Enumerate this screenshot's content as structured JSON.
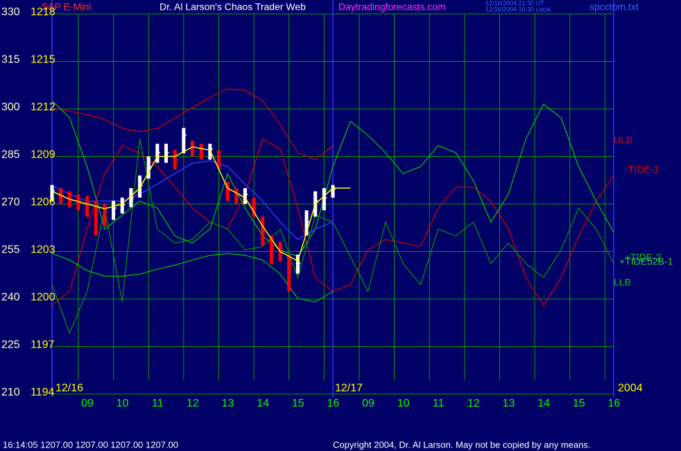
{
  "chart_data": {
    "type": "line",
    "title": "Dr. Al Larson's Chaos Trader Web",
    "instrument": "S&P E-Mini",
    "site": "Daytradingforecasts.com",
    "timestamps": [
      "12/16/2004 21:30 UT",
      "12/16/2004 16:30 Local"
    ],
    "file": "spcctom.txt",
    "status": "16:14:05  1207.00 1207.00 1207.00 1207.00",
    "copyright": "Copyright 2004, Dr. Al Larson. May not be copied by any means.",
    "date_labels": [
      "12/16",
      "12/17",
      "2004"
    ],
    "day_breaks": [
      0,
      8,
      16
    ],
    "grid": true,
    "xlim": [
      0,
      16
    ],
    "xticks": [
      {
        "value": 0.75,
        "label": "09"
      },
      {
        "value": 1.75,
        "label": "10"
      },
      {
        "value": 2.75,
        "label": "11"
      },
      {
        "value": 3.75,
        "label": "12"
      },
      {
        "value": 4.75,
        "label": "13"
      },
      {
        "value": 5.75,
        "label": "14"
      },
      {
        "value": 6.75,
        "label": "15"
      },
      {
        "value": 7.75,
        "label": "16"
      },
      {
        "value": 8.75,
        "label": "09"
      },
      {
        "value": 9.75,
        "label": "10"
      },
      {
        "value": 10.75,
        "label": "11"
      },
      {
        "value": 11.75,
        "label": "12"
      },
      {
        "value": 12.75,
        "label": "13"
      },
      {
        "value": 13.75,
        "label": "14"
      },
      {
        "value": 14.75,
        "label": "15"
      },
      {
        "value": 15.75,
        "label": "16"
      }
    ],
    "ylim": [
      210,
      330
    ],
    "yticks": [
      210,
      225,
      240,
      255,
      270,
      285,
      300,
      315,
      330
    ],
    "y2lim": [
      1194,
      1218
    ],
    "y2ticks": [
      1194,
      1197,
      1200,
      1203,
      1206,
      1209,
      1212,
      1215,
      1218
    ],
    "x": [
      0,
      0.5,
      1,
      1.5,
      2,
      2.5,
      3,
      3.5,
      4,
      4.5,
      5,
      5.5,
      6,
      6.5,
      7,
      7.5,
      8,
      8.5,
      9,
      9.5,
      10,
      10.5,
      11,
      11.5,
      12,
      12.5,
      13,
      13.5,
      14,
      14.5,
      15,
      15.5,
      16
    ],
    "series": [
      {
        "name": "ULB",
        "color": "#dd0000",
        "values": [
          300.4,
          299.3,
          298.2,
          296.7,
          293.9,
          292.8,
          293.9,
          297.2,
          300.4,
          303.7,
          306.3,
          305.9,
          302.6,
          295,
          286.2,
          284,
          288.4,
          null,
          null,
          null,
          null,
          null,
          null,
          null,
          null,
          null,
          null,
          null,
          null,
          null,
          null,
          null,
          null
        ]
      },
      {
        "name": "-TIDE-1",
        "color": "#dd0000",
        "values": [
          238,
          242.4,
          262.1,
          279.6,
          288.4,
          286.2,
          281.8,
          275.3,
          268.7,
          264.3,
          262.1,
          273.1,
          290.6,
          287.3,
          268.7,
          246.8,
          242.4,
          244.6,
          255.5,
          258.8,
          257.7,
          256.6,
          268.7,
          275.3,
          275.3,
          270.9,
          262.1,
          246.8,
          238,
          246.8,
          259.9,
          270.9,
          279.2
        ]
      },
      {
        "name": "+TIDE-2",
        "color": "#00cc00",
        "values": [
          302.6,
          297.2,
          281.8,
          262.1,
          266.5,
          270.9,
          268.7,
          259.9,
          257.7,
          262.1,
          279.6,
          268.7,
          259.9,
          255.5,
          253.4,
          262.1,
          281.8,
          296.1,
          291.7,
          286.2,
          279.6,
          281.8,
          288.4,
          286.2,
          277.4,
          264.3,
          273.1,
          290.6,
          301.5,
          297.2,
          281.8,
          270.9,
          261
        ]
      },
      {
        "name": "+TIDE52B-1",
        "color": "#009900",
        "values": [
          244.6,
          229.3,
          242.4,
          268.7,
          239.1,
          290.6,
          262.1,
          257.7,
          258.8,
          264.3,
          262.1,
          255.5,
          256.6,
          262.1,
          246.8,
          266.5,
          264.3,
          253.4,
          242.4,
          264.3,
          251.2,
          244.6,
          262.1,
          259.9,
          264.3,
          251.2,
          257.7,
          251.2,
          246.8,
          255.5,
          268.7,
          262.1,
          251.2
        ]
      },
      {
        "name": "LLB",
        "color": "#00cc00",
        "values": [
          254.4,
          252.3,
          249,
          247.2,
          247.2,
          247.9,
          249.4,
          250.7,
          252.3,
          253.8,
          254.4,
          253.8,
          252.3,
          247.9,
          240.2,
          239.1,
          242.4,
          null,
          null,
          null,
          null,
          null,
          null,
          null,
          null,
          null,
          null,
          null,
          null,
          null,
          null,
          null,
          null
        ]
      },
      {
        "color": "#3333ff",
        "values": [
          275.7,
          273.1,
          270.9,
          270.9,
          270.9,
          273.1,
          276.3,
          279.6,
          282.9,
          283.6,
          281.8,
          276.3,
          270.9,
          264.3,
          258.8,
          262.1,
          264.3,
          null,
          null,
          null,
          null,
          null,
          null,
          null,
          null,
          null,
          null,
          null,
          null,
          null,
          null,
          null,
          null
        ]
      },
      {
        "color": "#ffff00",
        "values": [
          274,
          271.5,
          270,
          268.5,
          270,
          275,
          285,
          285,
          288,
          287,
          275,
          272,
          263,
          255,
          252,
          270,
          275,
          275,
          null,
          null,
          null,
          null,
          null,
          null,
          null,
          null,
          null,
          null,
          null,
          null,
          null,
          null,
          null
        ]
      }
    ],
    "price_bars": {
      "up_color": "#ffffff",
      "down_color": "#ff0000",
      "x": [
        0,
        0.25,
        0.5,
        0.75,
        1,
        1.25,
        1.5,
        1.75,
        2,
        2.25,
        2.5,
        2.75,
        3,
        3.25,
        3.5,
        3.75,
        4,
        4.25,
        4.5,
        4.75,
        5,
        5.25,
        5.5,
        5.75,
        6,
        6.25,
        6.5,
        6.75,
        7,
        7.25,
        7.5,
        7.75,
        8
      ],
      "high": [
        276,
        275,
        274,
        273,
        272.5,
        271,
        270,
        271,
        272,
        275,
        279,
        285,
        289,
        289,
        287,
        294,
        290,
        289,
        289,
        287,
        277,
        275,
        275,
        272,
        266,
        260,
        258,
        254,
        254,
        268,
        274,
        275,
        276
      ],
      "low": [
        271,
        270,
        269,
        268,
        266,
        260,
        263,
        265,
        267,
        269,
        272,
        278,
        283,
        283,
        281,
        286,
        285,
        284,
        284,
        281,
        271,
        270,
        270,
        266,
        257,
        251,
        252,
        242.4,
        248,
        260,
        266,
        268,
        272
      ],
      "close": [
        274.2,
        272.8,
        271.5,
        270.9,
        270.2,
        268.7,
        267.6,
        268.7,
        269.8,
        272,
        275.7,
        281.8,
        286.2,
        286.2,
        284,
        291.7,
        288.4,
        287.3,
        287.3,
        285.1,
        274.2,
        273.1,
        273.1,
        269.8,
        262.1,
        256.6,
        255.5,
        251.2,
        251.2,
        264.3,
        270.9,
        272,
        274.8
      ]
    }
  }
}
